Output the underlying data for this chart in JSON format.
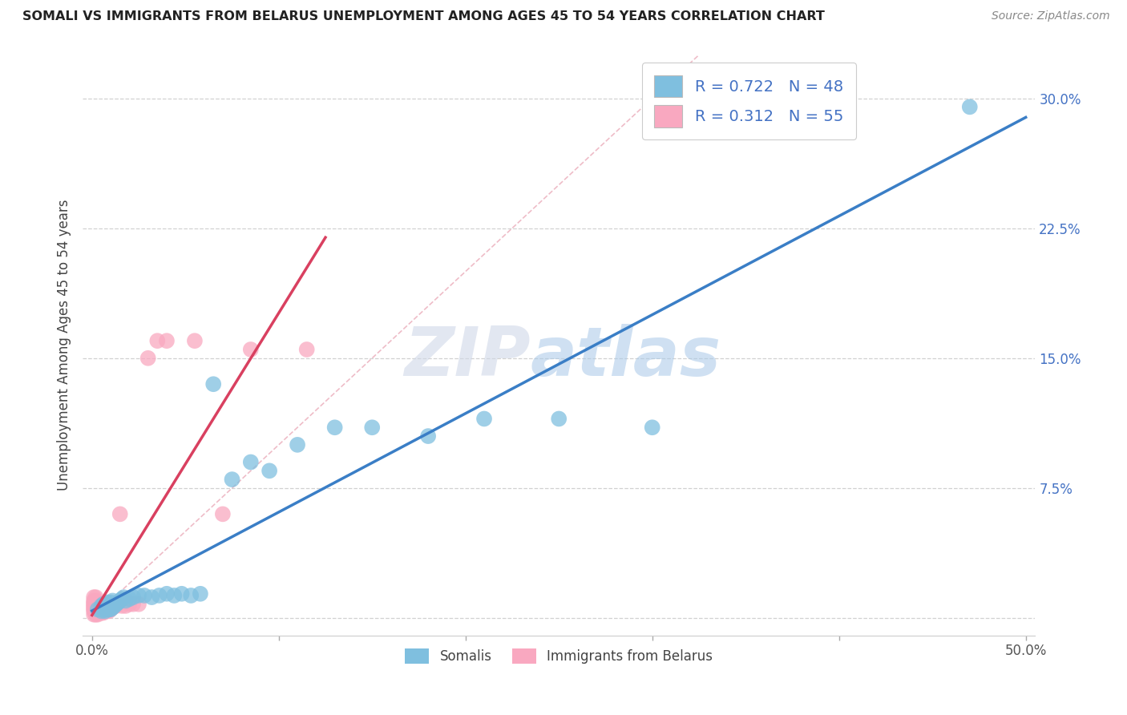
{
  "title": "SOMALI VS IMMIGRANTS FROM BELARUS UNEMPLOYMENT AMONG AGES 45 TO 54 YEARS CORRELATION CHART",
  "source": "Source: ZipAtlas.com",
  "ylabel": "Unemployment Among Ages 45 to 54 years",
  "legend_somali_label": "Somalis",
  "legend_belarus_label": "Immigrants from Belarus",
  "somali_R": "0.722",
  "somali_N": "48",
  "belarus_R": "0.312",
  "belarus_N": "55",
  "xlim": [
    -0.005,
    0.505
  ],
  "ylim": [
    -0.01,
    0.325
  ],
  "xticks": [
    0.0,
    0.1,
    0.2,
    0.3,
    0.4,
    0.5
  ],
  "xtick_labels": [
    "0.0%",
    "",
    "",
    "",
    "",
    "50.0%"
  ],
  "yticks": [
    0.0,
    0.075,
    0.15,
    0.225,
    0.3
  ],
  "ytick_labels": [
    "",
    "7.5%",
    "15.0%",
    "22.5%",
    "30.0%"
  ],
  "somali_color": "#7fbfdf",
  "belarus_color": "#f9a8c0",
  "somali_line_color": "#3a7ec6",
  "belarus_line_color": "#d94060",
  "watermark_zip": "ZIP",
  "watermark_atlas": "atlas",
  "background_color": "#ffffff",
  "somali_x": [
    0.003,
    0.005,
    0.005,
    0.006,
    0.006,
    0.006,
    0.007,
    0.007,
    0.007,
    0.008,
    0.008,
    0.008,
    0.009,
    0.009,
    0.01,
    0.01,
    0.011,
    0.011,
    0.012,
    0.013,
    0.014,
    0.015,
    0.016,
    0.017,
    0.018,
    0.02,
    0.022,
    0.025,
    0.028,
    0.032,
    0.036,
    0.04,
    0.044,
    0.048,
    0.053,
    0.058,
    0.065,
    0.075,
    0.085,
    0.095,
    0.11,
    0.13,
    0.15,
    0.18,
    0.21,
    0.25,
    0.3,
    0.47
  ],
  "somali_y": [
    0.005,
    0.004,
    0.007,
    0.005,
    0.006,
    0.008,
    0.004,
    0.006,
    0.008,
    0.005,
    0.007,
    0.009,
    0.005,
    0.008,
    0.005,
    0.009,
    0.006,
    0.01,
    0.007,
    0.008,
    0.009,
    0.01,
    0.011,
    0.012,
    0.01,
    0.011,
    0.012,
    0.013,
    0.013,
    0.012,
    0.013,
    0.014,
    0.013,
    0.014,
    0.013,
    0.014,
    0.135,
    0.08,
    0.09,
    0.085,
    0.1,
    0.11,
    0.11,
    0.105,
    0.115,
    0.115,
    0.11,
    0.295
  ],
  "belarus_x": [
    0.001,
    0.001,
    0.001,
    0.001,
    0.001,
    0.001,
    0.001,
    0.001,
    0.001,
    0.002,
    0.002,
    0.002,
    0.002,
    0.002,
    0.002,
    0.002,
    0.002,
    0.002,
    0.003,
    0.003,
    0.003,
    0.003,
    0.003,
    0.003,
    0.004,
    0.004,
    0.004,
    0.005,
    0.005,
    0.005,
    0.006,
    0.006,
    0.006,
    0.007,
    0.007,
    0.008,
    0.008,
    0.009,
    0.009,
    0.01,
    0.011,
    0.013,
    0.015,
    0.016,
    0.018,
    0.02,
    0.022,
    0.025,
    0.03,
    0.035,
    0.04,
    0.055,
    0.07,
    0.085,
    0.115
  ],
  "belarus_y": [
    0.002,
    0.004,
    0.005,
    0.006,
    0.007,
    0.008,
    0.009,
    0.01,
    0.012,
    0.002,
    0.003,
    0.004,
    0.005,
    0.006,
    0.007,
    0.008,
    0.01,
    0.012,
    0.002,
    0.003,
    0.004,
    0.005,
    0.006,
    0.008,
    0.003,
    0.005,
    0.007,
    0.003,
    0.005,
    0.007,
    0.003,
    0.005,
    0.008,
    0.004,
    0.007,
    0.004,
    0.007,
    0.004,
    0.007,
    0.005,
    0.006,
    0.007,
    0.06,
    0.007,
    0.007,
    0.008,
    0.008,
    0.008,
    0.15,
    0.16,
    0.16,
    0.16,
    0.06,
    0.155,
    0.155
  ]
}
